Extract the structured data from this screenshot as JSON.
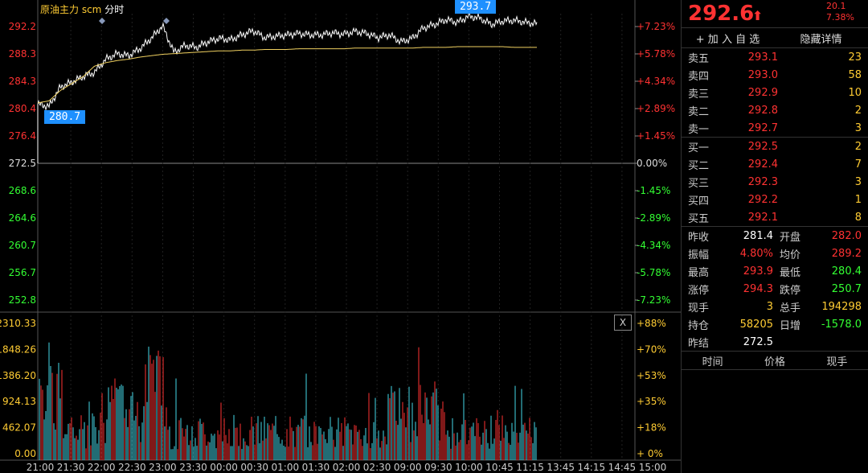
{
  "title": {
    "name": "原油主力 scm",
    "mode": "分时"
  },
  "price_axis": {
    "left_labels": [
      "292.2",
      "288.3",
      "284.3",
      "280.4",
      "276.4",
      "272.5",
      "268.6",
      "264.6",
      "260.7",
      "256.7",
      "252.8"
    ],
    "right_labels": [
      "+7.23%",
      "+5.78%",
      "+4.34%",
      "+2.89%",
      "+1.45%",
      "0.00%",
      "-1.45%",
      "-2.89%",
      "-4.34%",
      "-5.78%",
      "-7.23%"
    ],
    "callout_high": "293.7",
    "callout_low": "280.7"
  },
  "volume_axis": {
    "left_labels": [
      "2310.33",
      "1848.26",
      "1386.20",
      "924.13",
      "462.07",
      "0.00"
    ],
    "right_labels": [
      "+88%",
      "+70%",
      "+53%",
      "+35%",
      "+18%",
      "+ 0%"
    ],
    "close_label": "X"
  },
  "time_axis": [
    "21:00",
    "21:30",
    "22:00",
    "22:30",
    "23:00",
    "23:30",
    "00:00",
    "00:30",
    "01:00",
    "01:30",
    "02:00",
    "02:30",
    "09:00",
    "09:30",
    "10:00",
    "10:45",
    "11:15",
    "13:45",
    "14:15",
    "14:45",
    "15:00"
  ],
  "header": {
    "price": "292.6",
    "arrow": "⬆",
    "change": "20.1",
    "change_pct": "7.38%"
  },
  "actions": {
    "add": "+ 加 入 自 选",
    "hide": "隐藏详情"
  },
  "asks": [
    {
      "label": "卖五",
      "price": "293.1",
      "vol": "23"
    },
    {
      "label": "卖四",
      "price": "293.0",
      "vol": "58"
    },
    {
      "label": "卖三",
      "price": "292.9",
      "vol": "10"
    },
    {
      "label": "卖二",
      "price": "292.8",
      "vol": "2"
    },
    {
      "label": "卖一",
      "price": "292.7",
      "vol": "3"
    }
  ],
  "bids": [
    {
      "label": "买一",
      "price": "292.5",
      "vol": "2"
    },
    {
      "label": "买二",
      "price": "292.4",
      "vol": "7"
    },
    {
      "label": "买三",
      "price": "292.3",
      "vol": "3"
    },
    {
      "label": "买四",
      "price": "292.2",
      "vol": "1"
    },
    {
      "label": "买五",
      "price": "292.1",
      "vol": "8"
    }
  ],
  "stats": [
    {
      "k": "昨收",
      "v": "281.4",
      "vc": "white",
      "k2": "开盘",
      "v2": "282.0",
      "v2c": "red"
    },
    {
      "k": "振幅",
      "v": "4.80%",
      "vc": "red",
      "k2": "均价",
      "v2": "289.2",
      "v2c": "red"
    },
    {
      "k": "最高",
      "v": "293.9",
      "vc": "red",
      "k2": "最低",
      "v2": "280.4",
      "v2c": "green"
    },
    {
      "k": "涨停",
      "v": "294.3",
      "vc": "red",
      "k2": "跌停",
      "v2": "250.7",
      "v2c": "green"
    },
    {
      "k": "现手",
      "v": "3",
      "vc": "yellow",
      "k2": "总手",
      "v2": "194298",
      "v2c": "yellow"
    },
    {
      "k": "持仓",
      "v": "58205",
      "vc": "yellow",
      "k2": "日增",
      "v2": "-1578.0",
      "v2c": "green"
    },
    {
      "k": "昨结",
      "v": "272.5",
      "vc": "white",
      "k2": "",
      "v2": "",
      "v2c": "white"
    }
  ],
  "trades_header": {
    "time": "时间",
    "price": "价格",
    "vol": "现手"
  },
  "chart_data": {
    "type": "line",
    "price_range": [
      252.8,
      292.2
    ],
    "base_price": 272.5,
    "price_series_sample": [
      281.0,
      280.7,
      283.5,
      284.2,
      285.0,
      285.6,
      287.5,
      288.3,
      288.0,
      289.0,
      290.5,
      292.3,
      288.5,
      289.5,
      289.2,
      290.0,
      290.5,
      290.3,
      291.0,
      291.6,
      290.6,
      290.8,
      291.0,
      291.2,
      291.0,
      291.0,
      291.3,
      291.1,
      291.5,
      291.2,
      290.6,
      291.0,
      290.0,
      290.5,
      292.0,
      292.5,
      293.2,
      292.8,
      293.7,
      293.4,
      292.5,
      293.0,
      293.1,
      292.8,
      292.6
    ],
    "avg_series_sample": [
      281.2,
      281.5,
      283.0,
      284.0,
      285.0,
      286.5,
      287.0,
      287.3,
      287.5,
      287.8,
      288.0,
      288.2,
      288.3,
      288.4,
      288.5,
      288.6,
      288.7,
      288.7,
      288.8,
      288.8,
      288.9,
      288.9,
      288.9,
      289.0,
      289.0,
      289.0,
      289.0,
      289.0,
      289.1,
      289.1,
      289.1,
      289.1,
      289.1,
      289.1,
      289.2,
      289.2,
      289.2,
      289.3,
      289.3,
      289.3,
      289.3,
      289.3,
      289.2,
      289.2,
      289.2
    ],
    "volume_range": [
      0,
      2310.33
    ]
  }
}
